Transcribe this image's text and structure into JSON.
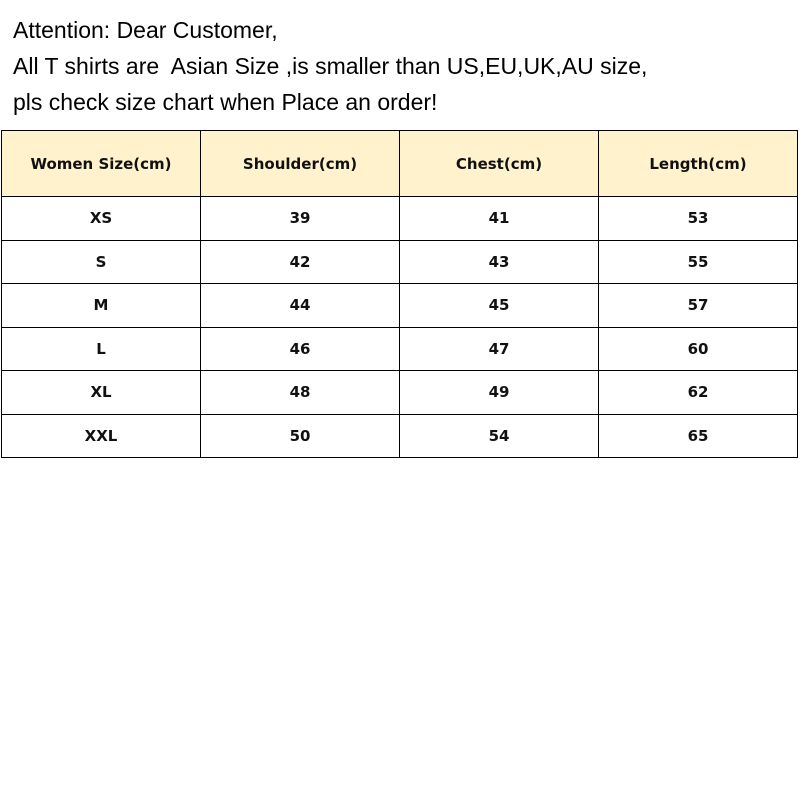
{
  "notice": [
    "Attention: Dear Customer,",
    "All T shirts are  Asian Size ,is smaller than US,EU,UK,AU size,",
    "pls check size chart when Place an order!"
  ],
  "table": {
    "headers": [
      "Women Size(cm)",
      "Shoulder(cm)",
      "Chest(cm)",
      "Length(cm)"
    ],
    "rows": [
      [
        "XS",
        "39",
        "41",
        "53"
      ],
      [
        "S",
        "42",
        "43",
        "55"
      ],
      [
        "M",
        "44",
        "45",
        "57"
      ],
      [
        "L",
        "46",
        "47",
        "60"
      ],
      [
        "XL",
        "48",
        "49",
        "62"
      ],
      [
        "XXL",
        "50",
        "54",
        "65"
      ]
    ]
  },
  "colors": {
    "header_bg": "#fff2cc"
  }
}
